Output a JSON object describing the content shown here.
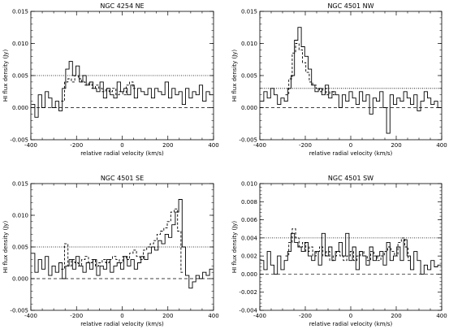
{
  "chart_data": [
    {
      "type": "line",
      "title": "NGC 4254 NE",
      "xlabel": "relative radial velocity (km/s)",
      "ylabel": "HI flux density (Jy)",
      "xlim": [
        -400,
        400
      ],
      "ylim": [
        -0.005,
        0.015
      ],
      "xticks": [
        "-400",
        "-200",
        "0",
        "200",
        "400"
      ],
      "yticks": [
        "-0.005",
        "0.000",
        "0.005",
        "0.010",
        "0.015"
      ],
      "dotted_level": 0.005,
      "dashed_level": 0.0,
      "series": [
        {
          "style": "solid-step",
          "x": [
            -390,
            -375,
            -360,
            -345,
            -330,
            -315,
            -300,
            -285,
            -270,
            -255,
            -240,
            -225,
            -210,
            -195,
            -180,
            -165,
            -150,
            -135,
            -120,
            -105,
            -90,
            -75,
            -60,
            -45,
            -30,
            -15,
            0,
            15,
            30,
            45,
            60,
            75,
            90,
            105,
            120,
            135,
            150,
            165,
            180,
            195,
            210,
            225,
            240,
            255,
            270,
            285,
            300,
            315,
            330,
            345,
            360,
            375,
            390
          ],
          "y": [
            0.0005,
            -0.0015,
            0.002,
            0.0,
            0.0025,
            0.0015,
            0.0,
            0.001,
            -0.0005,
            0.003,
            0.006,
            0.0072,
            0.005,
            0.0065,
            0.004,
            0.005,
            0.0035,
            0.004,
            0.003,
            0.0025,
            0.004,
            0.0015,
            0.003,
            0.002,
            0.0015,
            0.004,
            0.0025,
            0.003,
            0.002,
            0.0035,
            0.0015,
            0.003,
            0.0025,
            0.002,
            0.003,
            0.0015,
            0.003,
            0.0025,
            0.002,
            0.004,
            0.0015,
            0.003,
            0.002,
            0.0025,
            0.0005,
            0.003,
            0.0015,
            0.0025,
            0.002,
            0.0035,
            0.001,
            0.0025,
            0.002
          ]
        },
        {
          "style": "dashed-step",
          "x": [
            -260,
            -245,
            -230,
            -215,
            -200,
            -185,
            -170,
            -155,
            -140,
            -125,
            -110,
            -95,
            -80,
            -65,
            -50,
            -35,
            -20,
            -5,
            10,
            25,
            40,
            55
          ],
          "y": [
            0.001,
            0.004,
            0.0045,
            0.004,
            0.005,
            0.0045,
            0.004,
            0.0035,
            0.004,
            0.003,
            0.0035,
            0.003,
            0.0025,
            0.003,
            0.0025,
            0.003,
            0.002,
            0.0025,
            0.002,
            0.0035,
            0.004,
            0.003
          ]
        }
      ]
    },
    {
      "type": "line",
      "title": "NGC 4501 NW",
      "xlabel": "relative radial velocity (km/s)",
      "ylabel": "HI flux density (Jy)",
      "xlim": [
        -400,
        400
      ],
      "ylim": [
        -0.005,
        0.015
      ],
      "xticks": [
        "-400",
        "-200",
        "0",
        "200",
        "400"
      ],
      "yticks": [
        "-0.005",
        "0.000",
        "0.005",
        "0.010",
        "0.015"
      ],
      "dotted_level": 0.003,
      "dashed_level": 0.0,
      "series": [
        {
          "style": "solid-step",
          "x": [
            -390,
            -375,
            -360,
            -345,
            -330,
            -315,
            -300,
            -285,
            -270,
            -255,
            -240,
            -225,
            -210,
            -195,
            -180,
            -165,
            -150,
            -135,
            -120,
            -105,
            -90,
            -75,
            -60,
            -45,
            -30,
            -15,
            0,
            15,
            30,
            45,
            60,
            75,
            90,
            105,
            120,
            135,
            150,
            165,
            180,
            195,
            210,
            225,
            240,
            255,
            270,
            285,
            300,
            315,
            330,
            345,
            360,
            375,
            390
          ],
          "y": [
            0.001,
            0.0025,
            0.0015,
            0.003,
            0.002,
            0.0005,
            0.0015,
            0.001,
            0.003,
            0.005,
            0.0105,
            0.0125,
            0.0095,
            0.008,
            0.006,
            0.0035,
            0.0025,
            0.003,
            0.002,
            0.0035,
            0.0015,
            0.0025,
            0.002,
            0.0,
            0.002,
            0.001,
            0.0025,
            0.0015,
            0.0005,
            0.0025,
            0.001,
            0.002,
            -0.001,
            0.0015,
            0.001,
            0.0025,
            0.0,
            -0.004,
            0.002,
            0.0005,
            0.0015,
            0.001,
            0.0025,
            0.0015,
            0.0005,
            0.002,
            -0.0005,
            0.001,
            0.0025,
            0.0015,
            0.0005,
            0.001,
            0.0
          ]
        },
        {
          "style": "dashed-step",
          "x": [
            -280,
            -265,
            -250,
            -235,
            -220,
            -205,
            -190,
            -175,
            -160,
            -145,
            -130,
            -115,
            -100,
            -85,
            -70
          ],
          "y": [
            0.002,
            0.0045,
            0.0085,
            0.01,
            0.009,
            0.007,
            0.0055,
            0.004,
            0.0035,
            0.003,
            0.0025,
            0.003,
            0.002,
            0.0025,
            0.002
          ]
        }
      ]
    },
    {
      "type": "line",
      "title": "NGC 4501 SE",
      "xlabel": "relative radial velocity (km/s)",
      "ylabel": "HI flux density (Jy)",
      "xlim": [
        -400,
        400
      ],
      "ylim": [
        -0.005,
        0.015
      ],
      "xticks": [
        "-400",
        "-200",
        "0",
        "200",
        "400"
      ],
      "yticks": [
        "-0.005",
        "0.000",
        "0.005",
        "0.010",
        "0.015"
      ],
      "dotted_level": 0.005,
      "dashed_level": 0.0,
      "series": [
        {
          "style": "solid-step",
          "x": [
            -390,
            -375,
            -360,
            -345,
            -330,
            -315,
            -300,
            -285,
            -270,
            -255,
            -240,
            -225,
            -210,
            -195,
            -180,
            -165,
            -150,
            -135,
            -120,
            -105,
            -90,
            -75,
            -60,
            -45,
            -30,
            -15,
            0,
            15,
            30,
            45,
            60,
            75,
            90,
            105,
            120,
            135,
            150,
            165,
            180,
            195,
            210,
            225,
            240,
            255,
            270,
            285,
            300,
            315,
            330,
            345,
            360,
            375,
            390
          ],
          "y": [
            0.004,
            0.001,
            0.003,
            0.0015,
            0.0035,
            0.0005,
            0.002,
            0.001,
            0.0025,
            0.0,
            0.002,
            0.003,
            0.0015,
            0.0035,
            0.002,
            0.001,
            0.0025,
            0.0015,
            0.003,
            0.0005,
            0.002,
            0.0015,
            0.003,
            0.001,
            0.002,
            0.0025,
            0.0015,
            0.0035,
            0.002,
            0.003,
            0.0015,
            0.0025,
            0.0035,
            0.003,
            0.004,
            0.005,
            0.0045,
            0.006,
            0.0055,
            0.007,
            0.0065,
            0.0085,
            0.0105,
            0.0125,
            0.005,
            0.0005,
            -0.0015,
            -0.0005,
            0.0005,
            0.0,
            0.001,
            0.0005,
            0.0015
          ]
        },
        {
          "style": "dashed-step",
          "x": [
            -260,
            -245,
            -230,
            -215,
            -200,
            -185,
            -170,
            -155,
            -140,
            -125,
            -110,
            -95,
            -80,
            -65,
            -50,
            -35,
            -20,
            -5,
            10,
            25,
            40,
            55,
            70,
            85,
            100,
            115,
            130,
            145,
            160,
            175,
            190,
            205,
            220,
            235,
            250,
            265
          ],
          "y": [
            0.0015,
            0.0055,
            0.002,
            0.003,
            0.0025,
            0.002,
            0.003,
            0.0035,
            0.0025,
            0.003,
            0.002,
            0.0025,
            0.003,
            0.0025,
            0.003,
            0.0035,
            0.003,
            0.0025,
            0.0035,
            0.003,
            0.004,
            0.0045,
            0.0035,
            0.003,
            0.0045,
            0.005,
            0.0055,
            0.006,
            0.007,
            0.0075,
            0.008,
            0.009,
            0.0105,
            0.011,
            0.0075,
            0.001
          ]
        }
      ]
    },
    {
      "type": "line",
      "title": "NGC 4501 SW",
      "xlabel": "relative radial velocity (km/s)",
      "ylabel": "HI flux density (Jy)",
      "xlim": [
        -400,
        400
      ],
      "ylim": [
        -0.004,
        0.01
      ],
      "xticks": [
        "-400",
        "-200",
        "0",
        "200",
        "400"
      ],
      "yticks": [
        "-0.004",
        "-0.002",
        "0.000",
        "0.002",
        "0.004",
        "0.006",
        "0.008",
        "0.010"
      ],
      "dotted_level": 0.004,
      "dashed_level": 0.0,
      "series": [
        {
          "style": "solid-step",
          "x": [
            -390,
            -375,
            -360,
            -345,
            -330,
            -315,
            -300,
            -285,
            -270,
            -255,
            -240,
            -225,
            -210,
            -195,
            -180,
            -165,
            -150,
            -135,
            -120,
            -105,
            -90,
            -75,
            -60,
            -45,
            -30,
            -15,
            0,
            15,
            30,
            45,
            60,
            75,
            90,
            105,
            120,
            135,
            150,
            165,
            180,
            195,
            210,
            225,
            240,
            255,
            270,
            285,
            300,
            315,
            330,
            345,
            360,
            375,
            390
          ],
          "y": [
            0.0015,
            0.0005,
            0.0025,
            0.001,
            0.0,
            0.002,
            0.0005,
            0.0015,
            0.0025,
            0.0045,
            0.0035,
            0.003,
            0.0025,
            0.0035,
            0.002,
            0.0015,
            0.0025,
            0.001,
            0.0045,
            0.002,
            0.003,
            0.0015,
            0.0025,
            0.0035,
            0.002,
            0.0045,
            0.0015,
            0.003,
            0.0005,
            0.0025,
            0.002,
            0.001,
            0.003,
            0.0015,
            0.002,
            0.0025,
            0.001,
            0.0035,
            0.0015,
            0.002,
            0.003,
            0.0015,
            0.0038,
            0.002,
            0.0005,
            0.0025,
            0.0015,
            0.0,
            0.001,
            0.0005,
            0.0015,
            0.0008,
            0.001
          ]
        },
        {
          "style": "dashed-step",
          "x": [
            -280,
            -265,
            -250,
            -235,
            -220,
            -205,
            -190,
            -175,
            -160,
            -145,
            -130,
            -115,
            -100,
            -85,
            -70,
            -55,
            -40,
            -25,
            -10,
            5,
            20,
            35,
            50,
            65,
            80,
            95,
            110,
            125,
            140,
            155,
            170,
            185,
            200,
            215,
            230,
            245,
            260
          ],
          "y": [
            0.002,
            0.0035,
            0.005,
            0.004,
            0.003,
            0.0035,
            0.0025,
            0.003,
            0.002,
            0.0025,
            0.003,
            0.002,
            0.0025,
            0.0015,
            0.002,
            0.0025,
            0.002,
            0.0015,
            0.002,
            0.0025,
            0.0015,
            0.002,
            0.0025,
            0.002,
            0.0015,
            0.0025,
            0.002,
            0.0015,
            0.002,
            0.0025,
            0.003,
            0.0025,
            0.002,
            0.0035,
            0.004,
            0.003,
            0.0015
          ]
        }
      ]
    }
  ]
}
